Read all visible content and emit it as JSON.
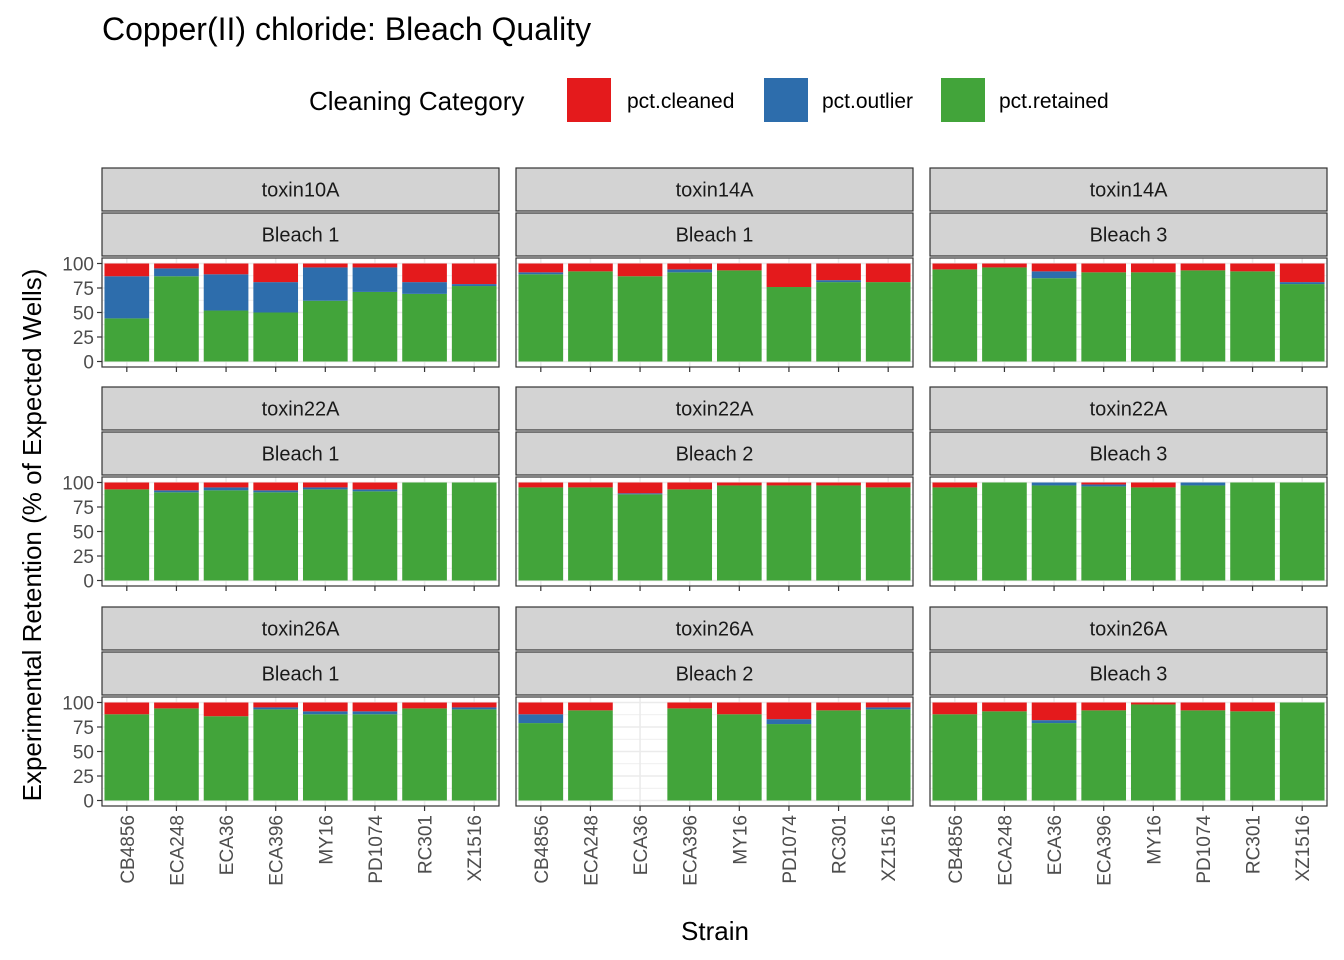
{
  "chart_data": {
    "type": "bar",
    "title": "Copper(II) chloride: Bleach Quality",
    "xlabel": "Strain",
    "ylabel": "Experimental Retention (% of Expected Wells)",
    "ylim": [
      0,
      100
    ],
    "yticks": [
      0,
      25,
      50,
      75,
      100
    ],
    "legend": {
      "title": "Cleaning Category",
      "position": "top",
      "entries": [
        "pct.cleaned",
        "pct.outlier",
        "pct.retained"
      ]
    },
    "colors": {
      "pct.cleaned": "#E41A1C",
      "pct.outlier": "#2D6DAC",
      "pct.retained": "#42A43A"
    },
    "categories": [
      "CB4856",
      "ECA248",
      "ECA36",
      "ECA396",
      "MY16",
      "PD1074",
      "RC301",
      "XZ1516"
    ],
    "panels": [
      {
        "toxin": "toxin10A",
        "bleach": "Bleach 1",
        "retained": [
          44,
          87,
          52,
          50,
          62,
          71,
          69,
          77
        ],
        "outlier": [
          43,
          8,
          37,
          31,
          34,
          25,
          12,
          2
        ],
        "cleaned": [
          13,
          5,
          11,
          19,
          4,
          4,
          19,
          21
        ]
      },
      {
        "toxin": "toxin14A",
        "bleach": "Bleach 1",
        "retained": [
          89,
          92,
          87,
          91,
          93,
          76,
          81,
          81
        ],
        "outlier": [
          2,
          0,
          0,
          3,
          0,
          0,
          2,
          0
        ],
        "cleaned": [
          9,
          8,
          13,
          6,
          7,
          24,
          17,
          19
        ]
      },
      {
        "toxin": "toxin14A",
        "bleach": "Bleach 3",
        "retained": [
          94,
          96,
          85,
          91,
          91,
          93,
          92,
          79
        ],
        "outlier": [
          0,
          0,
          7,
          0,
          0,
          0,
          0,
          2
        ],
        "cleaned": [
          6,
          4,
          8,
          9,
          9,
          7,
          8,
          19
        ]
      },
      {
        "toxin": "toxin22A",
        "bleach": "Bleach 1",
        "retained": [
          93,
          90,
          92,
          90,
          93,
          91,
          100,
          100
        ],
        "outlier": [
          0,
          2,
          3,
          2,
          2,
          2,
          0,
          0
        ],
        "cleaned": [
          7,
          8,
          5,
          8,
          5,
          7,
          0,
          0
        ]
      },
      {
        "toxin": "toxin22A",
        "bleach": "Bleach 2",
        "retained": [
          95,
          95,
          88,
          93,
          97,
          97,
          97,
          95
        ],
        "outlier": [
          0,
          0,
          1,
          0,
          0,
          0,
          0,
          0
        ],
        "cleaned": [
          5,
          5,
          11,
          7,
          3,
          3,
          3,
          5
        ]
      },
      {
        "toxin": "toxin22A",
        "bleach": "Bleach 3",
        "retained": [
          95,
          100,
          97,
          96,
          95,
          97,
          100,
          100
        ],
        "outlier": [
          0,
          0,
          3,
          2,
          0,
          3,
          0,
          0
        ],
        "cleaned": [
          5,
          0,
          0,
          2,
          5,
          0,
          0,
          0
        ]
      },
      {
        "toxin": "toxin26A",
        "bleach": "Bleach 1",
        "retained": [
          88,
          94,
          86,
          93,
          88,
          88,
          94,
          93
        ],
        "outlier": [
          0,
          0,
          0,
          2,
          3,
          3,
          0,
          2
        ],
        "cleaned": [
          12,
          6,
          14,
          5,
          9,
          9,
          6,
          5
        ]
      },
      {
        "toxin": "toxin26A",
        "bleach": "Bleach 2",
        "retained": [
          79,
          92,
          null,
          94,
          88,
          78,
          92,
          93
        ],
        "outlier": [
          9,
          0,
          null,
          0,
          0,
          5,
          0,
          2
        ],
        "cleaned": [
          12,
          8,
          null,
          6,
          12,
          17,
          8,
          5
        ]
      },
      {
        "toxin": "toxin26A",
        "bleach": "Bleach 3",
        "retained": [
          88,
          91,
          79,
          92,
          98,
          92,
          91,
          100
        ],
        "outlier": [
          0,
          0,
          3,
          0,
          0,
          0,
          0,
          0
        ],
        "cleaned": [
          12,
          9,
          18,
          8,
          2,
          8,
          9,
          0
        ]
      }
    ]
  }
}
